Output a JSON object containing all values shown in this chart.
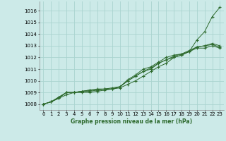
{
  "xlabel": "Graphe pression niveau de la mer (hPa)",
  "xlim": [
    -0.5,
    23.5
  ],
  "ylim": [
    1007.5,
    1016.8
  ],
  "yticks": [
    1008,
    1009,
    1010,
    1011,
    1012,
    1013,
    1014,
    1015,
    1016
  ],
  "xticks": [
    0,
    1,
    2,
    3,
    4,
    5,
    6,
    7,
    8,
    9,
    10,
    11,
    12,
    13,
    14,
    15,
    16,
    17,
    18,
    19,
    20,
    21,
    22,
    23
  ],
  "bg_color": "#cceae8",
  "grid_color": "#aad4d0",
  "line_color": "#2d6a2d",
  "line1_y": [
    1008.0,
    1008.2,
    1008.5,
    1008.8,
    1009.0,
    1009.0,
    1009.0,
    1009.1,
    1009.2,
    1009.3,
    1009.4,
    1009.7,
    1010.0,
    1010.4,
    1010.8,
    1011.2,
    1011.5,
    1012.0,
    1012.2,
    1012.5,
    1013.5,
    1014.2,
    1015.5,
    1016.3
  ],
  "line2_y": [
    1008.0,
    1008.2,
    1008.5,
    1009.0,
    1009.0,
    1009.1,
    1009.1,
    1009.2,
    1009.3,
    1009.3,
    1009.5,
    1010.0,
    1010.4,
    1010.8,
    1011.0,
    1011.5,
    1011.8,
    1012.0,
    1012.2,
    1012.5,
    1012.8,
    1012.8,
    1013.0,
    1012.8
  ],
  "line3_y": [
    1008.0,
    1008.2,
    1008.6,
    1009.0,
    1009.0,
    1009.1,
    1009.2,
    1009.2,
    1009.3,
    1009.3,
    1009.5,
    1010.0,
    1010.4,
    1010.8,
    1011.1,
    1011.5,
    1011.8,
    1012.1,
    1012.3,
    1012.5,
    1012.9,
    1013.0,
    1013.2,
    1013.0
  ],
  "line4_y": [
    1008.0,
    1008.2,
    1008.6,
    1009.0,
    1009.0,
    1009.1,
    1009.2,
    1009.3,
    1009.3,
    1009.4,
    1009.5,
    1010.1,
    1010.5,
    1011.0,
    1011.2,
    1011.6,
    1012.0,
    1012.2,
    1012.3,
    1012.6,
    1012.9,
    1013.0,
    1013.1,
    1012.9
  ]
}
